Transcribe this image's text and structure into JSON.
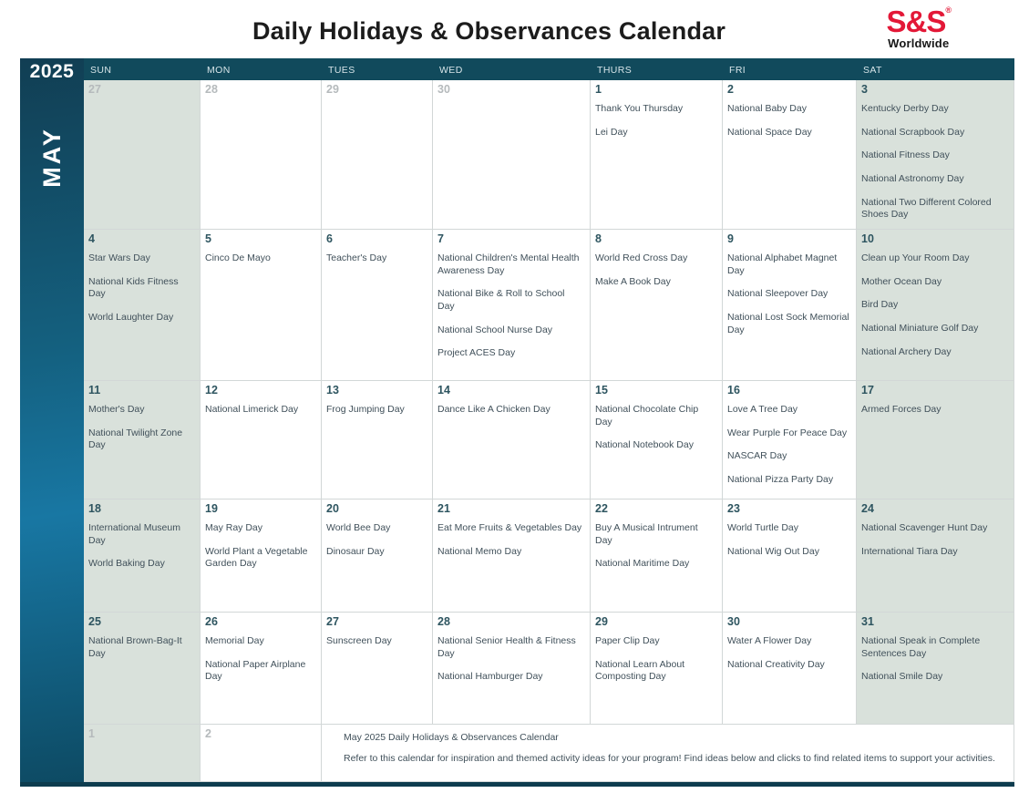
{
  "title": "Daily Holidays & Observances Calendar",
  "logo": {
    "brand": "S&S",
    "reg": "®",
    "subtext": "Worldwide",
    "brand_color": "#e31837"
  },
  "sidebar": {
    "year": "2025",
    "month": "MAY"
  },
  "colors": {
    "header_bar": "#114a5c",
    "weekend_cell": "#d9e1db",
    "sidebar_gradient_mid": "#1877a3",
    "day_number": "#2e5560",
    "muted_number": "#b5babc",
    "event_text": "#40505a"
  },
  "weekday_headers": [
    "SUN",
    "MON",
    "TUES",
    "WED",
    "THURS",
    "FRI",
    "SAT"
  ],
  "weeks": [
    {
      "days": [
        {
          "num": "27",
          "outside": true,
          "events": []
        },
        {
          "num": "28",
          "outside": true,
          "events": []
        },
        {
          "num": "29",
          "outside": true,
          "events": []
        },
        {
          "num": "30",
          "outside": true,
          "events": []
        },
        {
          "num": "1",
          "outside": false,
          "events": [
            "Thank You Thursday",
            "Lei Day"
          ]
        },
        {
          "num": "2",
          "outside": false,
          "events": [
            "National Baby Day",
            "National Space Day"
          ]
        },
        {
          "num": "3",
          "outside": false,
          "events": [
            "Kentucky Derby Day",
            "National Scrapbook Day",
            "National Fitness Day",
            "National Astronomy Day",
            "National Two Different Colored Shoes Day"
          ]
        }
      ]
    },
    {
      "days": [
        {
          "num": "4",
          "outside": false,
          "events": [
            "Star Wars Day",
            "National Kids Fitness Day",
            "World Laughter Day"
          ]
        },
        {
          "num": "5",
          "outside": false,
          "events": [
            "Cinco De Mayo"
          ]
        },
        {
          "num": "6",
          "outside": false,
          "events": [
            "Teacher's Day"
          ]
        },
        {
          "num": "7",
          "outside": false,
          "events": [
            "National Children's Mental Health Awareness Day",
            "National Bike & Roll to School Day",
            "National School Nurse Day",
            "Project ACES Day"
          ]
        },
        {
          "num": "8",
          "outside": false,
          "events": [
            "World Red Cross Day",
            "Make A Book Day"
          ]
        },
        {
          "num": "9",
          "outside": false,
          "events": [
            "National Alphabet Magnet Day",
            "National Sleepover Day",
            "National Lost Sock Memorial Day"
          ]
        },
        {
          "num": "10",
          "outside": false,
          "events": [
            "Clean up Your Room Day",
            "Mother Ocean Day",
            "Bird Day",
            "National Miniature Golf Day",
            "National Archery Day"
          ]
        }
      ]
    },
    {
      "days": [
        {
          "num": "11",
          "outside": false,
          "events": [
            "Mother's Day",
            "National Twilight Zone Day"
          ]
        },
        {
          "num": "12",
          "outside": false,
          "events": [
            "National Limerick Day"
          ]
        },
        {
          "num": "13",
          "outside": false,
          "events": [
            "Frog Jumping Day"
          ]
        },
        {
          "num": "14",
          "outside": false,
          "events": [
            "Dance Like A Chicken Day"
          ]
        },
        {
          "num": "15",
          "outside": false,
          "events": [
            "National Chocolate Chip Day",
            "National Notebook Day"
          ]
        },
        {
          "num": "16",
          "outside": false,
          "events": [
            "Love A Tree Day",
            "Wear Purple For Peace Day",
            "NASCAR Day",
            "National Pizza Party Day"
          ]
        },
        {
          "num": "17",
          "outside": false,
          "events": [
            "Armed Forces Day"
          ]
        }
      ]
    },
    {
      "days": [
        {
          "num": "18",
          "outside": false,
          "events": [
            "International Museum Day",
            "World Baking Day"
          ]
        },
        {
          "num": "19",
          "outside": false,
          "events": [
            "May Ray Day",
            "World Plant a Vegetable Garden Day"
          ]
        },
        {
          "num": "20",
          "outside": false,
          "events": [
            "World Bee Day",
            "Dinosaur Day"
          ]
        },
        {
          "num": "21",
          "outside": false,
          "events": [
            "Eat More Fruits & Vegetables Day",
            "National Memo Day"
          ]
        },
        {
          "num": "22",
          "outside": false,
          "events": [
            "Buy A Musical Intrument Day",
            "National Maritime Day"
          ]
        },
        {
          "num": "23",
          "outside": false,
          "events": [
            "World Turtle Day",
            "National Wig Out Day"
          ]
        },
        {
          "num": "24",
          "outside": false,
          "events": [
            "National Scavenger Hunt Day",
            "International Tiara Day"
          ]
        }
      ]
    },
    {
      "days": [
        {
          "num": "25",
          "outside": false,
          "events": [
            "National Brown-Bag-It Day"
          ]
        },
        {
          "num": "26",
          "outside": false,
          "events": [
            "Memorial Day",
            "National Paper Airplane Day"
          ]
        },
        {
          "num": "27",
          "outside": false,
          "events": [
            "Sunscreen Day"
          ]
        },
        {
          "num": "28",
          "outside": false,
          "events": [
            "National Senior Health & Fitness Day",
            "National Hamburger Day"
          ]
        },
        {
          "num": "29",
          "outside": false,
          "events": [
            "Paper Clip Day",
            "National Learn About Composting Day"
          ]
        },
        {
          "num": "30",
          "outside": false,
          "events": [
            "Water A Flower Day",
            "National Creativity Day"
          ]
        },
        {
          "num": "31",
          "outside": false,
          "events": [
            "National Speak in Complete Sentences Day",
            "National Smile Day"
          ]
        }
      ]
    }
  ],
  "footer": {
    "days": [
      {
        "num": "1",
        "outside": true
      },
      {
        "num": "2",
        "outside": true
      }
    ],
    "note_title": "May 2025 Daily Holidays & Observances Calendar",
    "note_body": "Refer to this calendar for inspiration and themed activity ideas for your program! Find ideas below and clicks to find related items to support your activities."
  }
}
